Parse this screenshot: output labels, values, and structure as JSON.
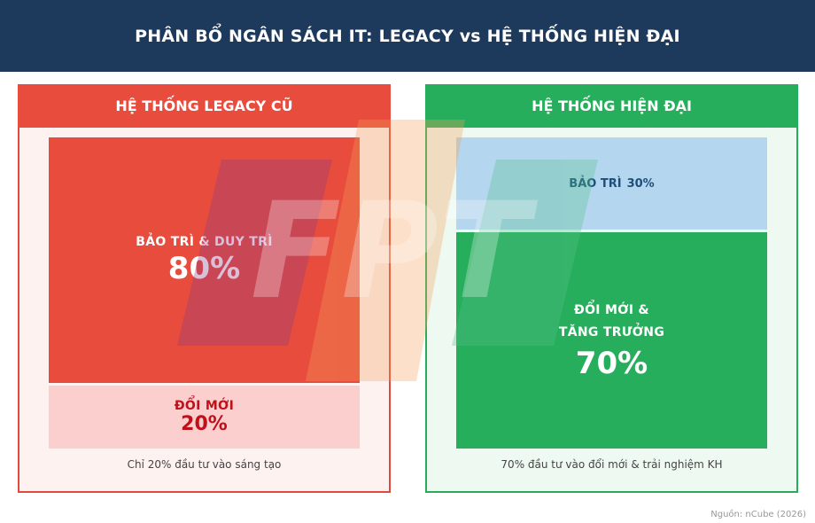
{
  "header": {
    "title": "PHÂN BỔ NGÂN SÁCH IT: LEGACY vs HỆ THỐNG HIỆN ĐẠI"
  },
  "legacy": {
    "title": "HỆ THỐNG LEGACY CŨ",
    "maintenance": {
      "label": "BẢO TRÌ & DUY TRÌ",
      "percent": "80%"
    },
    "innovation": {
      "label": "ĐỔI MỚI",
      "percent": "20%"
    },
    "caption": "Chỉ 20% đầu tư vào sáng tạo"
  },
  "modern": {
    "title": "HỆ THỐNG HIỆN ĐẠI",
    "maintenance": {
      "label": "BẢO TRÌ",
      "percent": "30%"
    },
    "innovation": {
      "label_line1": "ĐỔI MỚI &",
      "label_line2": "TĂNG TRƯỞNG",
      "percent": "70%"
    },
    "caption": "70% đầu tư vào đổi mới & trải nghiệm KH"
  },
  "source": "Nguồn: nCube (2026)",
  "watermark": {
    "text": "FPT"
  },
  "colors": {
    "header_bg": "#1d3a5c",
    "legacy_red": "#e84c3d",
    "legacy_light": "#fccfcf",
    "modern_green": "#27ae5c",
    "modern_light_blue": "#b4d6ef"
  },
  "chart_data": {
    "type": "bar",
    "stacked": true,
    "categories": [
      "HỆ THỐNG LEGACY CŨ",
      "HỆ THỐNG HIỆN ĐẠI"
    ],
    "series": [
      {
        "name": "BẢO TRÌ",
        "values": [
          80,
          30
        ]
      },
      {
        "name": "ĐỔI MỚI",
        "values": [
          20,
          70
        ]
      }
    ],
    "ylim": [
      0,
      100
    ]
  }
}
